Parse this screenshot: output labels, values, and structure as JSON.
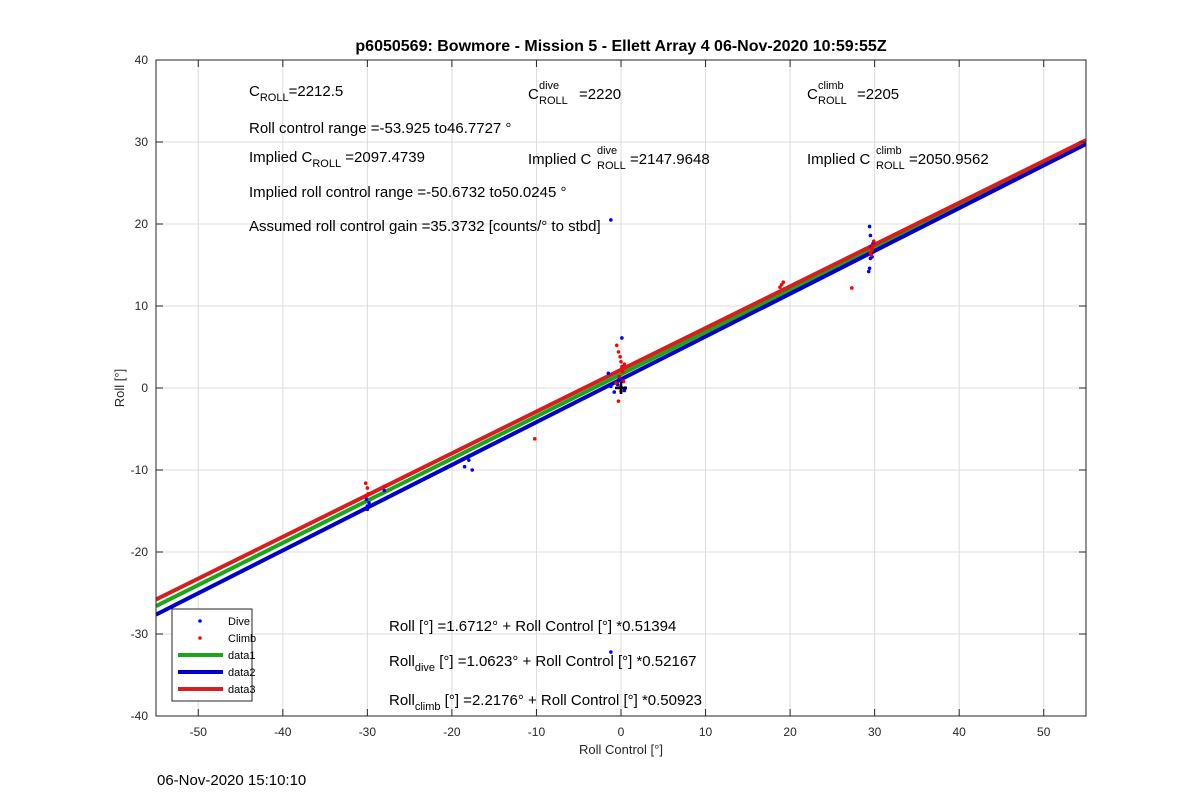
{
  "chart_data": {
    "type": "scatter",
    "title": "p6050569: Bowmore - Mission 5 - Ellett Array 4 06-Nov-2020 10:59:55Z",
    "xlabel": "Roll Control [°]",
    "ylabel": "Roll [°]",
    "xlim": [
      -55,
      55
    ],
    "ylim": [
      -40,
      40
    ],
    "xticks": [
      -50,
      -40,
      -30,
      -20,
      -10,
      0,
      10,
      20,
      30,
      40,
      50
    ],
    "yticks": [
      -40,
      -30,
      -20,
      -10,
      0,
      10,
      20,
      30,
      40
    ],
    "grid": true,
    "legend_position": "bottom-left",
    "series": [
      {
        "name": "Dive",
        "kind": "points",
        "color": "#0000ff",
        "points": [
          [
            -30,
            -14.8
          ],
          [
            -30,
            -14.4
          ],
          [
            -29.8,
            -14.0
          ],
          [
            -30.1,
            -13.6
          ],
          [
            -28,
            -12.5
          ],
          [
            -18.5,
            -9.6
          ],
          [
            -18,
            -8.8
          ],
          [
            -17.6,
            -10
          ],
          [
            -1.5,
            1.8
          ],
          [
            -1.2,
            0.2
          ],
          [
            -0.8,
            -0.5
          ],
          [
            -0.4,
            0.4
          ],
          [
            0,
            0.1
          ],
          [
            0.2,
            0.8
          ],
          [
            0.4,
            -0.3
          ],
          [
            0.1,
            6.1
          ],
          [
            -0.2,
            1.2
          ],
          [
            0.5,
            0.0
          ],
          [
            29.3,
            14.2
          ],
          [
            29.4,
            14.6
          ],
          [
            29.5,
            15.8
          ],
          [
            29.5,
            16.4
          ],
          [
            29.6,
            17.2
          ],
          [
            29.5,
            18.6
          ],
          [
            29.4,
            19.7
          ],
          [
            29.7,
            16.0
          ],
          [
            29.8,
            17.6
          ],
          [
            -1.2,
            -32.2
          ],
          [
            -1.2,
            20.5
          ]
        ]
      },
      {
        "name": "Climb",
        "kind": "points",
        "color": "#ff0000",
        "points": [
          [
            -30.2,
            -11.6
          ],
          [
            -30,
            -12.2
          ],
          [
            -29.9,
            -12.9
          ],
          [
            -30.1,
            -13.2
          ],
          [
            -28,
            -12.0
          ],
          [
            -10.2,
            -6.2
          ],
          [
            -0.5,
            5.2
          ],
          [
            -0.3,
            4.4
          ],
          [
            -0.1,
            3.8
          ],
          [
            0,
            3.2
          ],
          [
            0.1,
            2.6
          ],
          [
            0.2,
            2.0
          ],
          [
            -0.2,
            1.4
          ],
          [
            0.3,
            0.8
          ],
          [
            0.0,
            -0.4
          ],
          [
            -0.3,
            -1.6
          ],
          [
            0.4,
            2.9
          ],
          [
            -0.6,
            0.6
          ],
          [
            19,
            12.6
          ],
          [
            19.2,
            12.9
          ],
          [
            18.8,
            12.3
          ],
          [
            27.3,
            12.2
          ],
          [
            29.6,
            16.2
          ],
          [
            29.7,
            16.8
          ],
          [
            29.8,
            17.4
          ],
          [
            29.9,
            17.9
          ],
          [
            29.5,
            16.5
          ],
          [
            29.7,
            17.1
          ]
        ]
      },
      {
        "name": "data1",
        "kind": "line",
        "color": "#1aa51a",
        "intercept": 1.6712,
        "slope": 0.51394
      },
      {
        "name": "data2",
        "kind": "line",
        "color": "#0000c8",
        "intercept": 1.0623,
        "slope": 0.52167
      },
      {
        "name": "data3",
        "kind": "line",
        "color": "#d71e1e",
        "intercept": 2.2176,
        "slope": 0.50923
      }
    ],
    "marker": {
      "x": 0,
      "y": 0,
      "symbol": "+",
      "color": "#000000"
    },
    "annotations": {
      "c_roll": {
        "base": "C",
        "sub": "ROLL",
        "value": "=2212.5"
      },
      "c_roll_dive": {
        "base": "C",
        "sup": "dive",
        "sub": "ROLL",
        "value": "=2220"
      },
      "c_roll_climb": {
        "base": "C",
        "sup": "climb",
        "sub": "ROLL",
        "value": "=2205"
      },
      "roll_control_range": "Roll control range =-53.925 to46.7727 °",
      "implied_c_roll": {
        "prefix": "Implied C",
        "sub": "ROLL",
        "value": " =2097.4739"
      },
      "implied_c_roll_dive": {
        "prefix": "Implied C",
        "sup": "dive",
        "sub": "ROLL",
        "value": " =2147.9648"
      },
      "implied_c_roll_climb": {
        "prefix": "Implied C",
        "sup": "climb",
        "sub": "ROLL",
        "value": " =2050.9562"
      },
      "implied_range": "Implied roll control range =-50.6732 to50.0245 °",
      "assumed_gain": "Assumed roll control gain =35.3732 [counts/° to stbd]",
      "fit_all": "Roll [°] =1.6712° + Roll Control [°] *0.51394",
      "fit_dive": {
        "base": "Roll",
        "sub": "dive",
        "rest": " [°] =1.0623° + Roll Control [°] *0.52167"
      },
      "fit_climb": {
        "base": "Roll",
        "sub": "climb",
        "rest": " [°] =2.2176° + Roll Control [°] *0.50923"
      }
    }
  },
  "footer": {
    "timestamp": "06-Nov-2020 15:10:10"
  }
}
